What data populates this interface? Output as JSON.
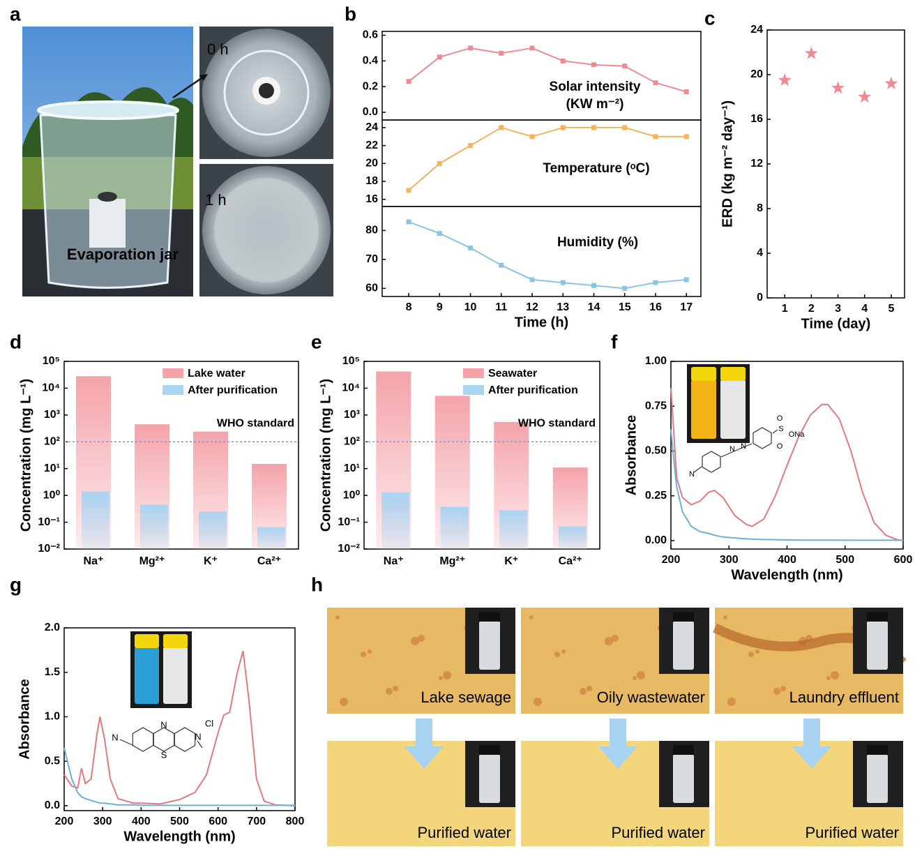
{
  "panel_labels": [
    "a",
    "b",
    "c",
    "d",
    "e",
    "f",
    "g",
    "h"
  ],
  "photo_labels": {
    "before": "0 h",
    "after": "1 h",
    "jar": "Evaporation jar"
  },
  "micrographs": {
    "samples": [
      "Lake sewage",
      "Oily wastewater",
      "Laundry effluent"
    ],
    "purified": [
      "Purified water",
      "Purified water",
      "Purified water"
    ]
  },
  "chart_data": [
    {
      "type": "line",
      "annotation": [
        "Solar intensity",
        "(KW m⁻²)"
      ],
      "marker": "square",
      "x": [
        8,
        9,
        10,
        11,
        12,
        13,
        14,
        15,
        16,
        17
      ],
      "xlim": [
        7.14,
        17.47
      ],
      "series": [
        {
          "color": "#f08a92",
          "values": [
            0.24,
            0.43,
            0.5,
            0.46,
            0.5,
            0.4,
            0.37,
            0.36,
            0.23,
            0.16
          ]
        }
      ],
      "ylim": [
        -0.06,
        0.63
      ],
      "yticks": [
        {
          "value": 0,
          "label": "0.0"
        },
        0.2,
        0.4,
        0.6
      ]
    },
    {
      "type": "line",
      "annotation": [
        "Temperature (ᵒC)"
      ],
      "marker": "square",
      "x": [
        8,
        9,
        10,
        11,
        12,
        13,
        14,
        15,
        16,
        17
      ],
      "xlim": [
        7.14,
        17.47
      ],
      "series": [
        {
          "color": "#f5b35a",
          "values": [
            17,
            20,
            22,
            24,
            23,
            24,
            24,
            24,
            23,
            23
          ]
        }
      ],
      "ylim": [
        15.2,
        24.85
      ],
      "yticks": [
        16,
        18,
        20,
        22,
        24
      ]
    },
    {
      "type": "line",
      "annotation": [
        "Humidity (%)"
      ],
      "marker": "square",
      "xlabel": "Time (h)",
      "x": [
        8,
        9,
        10,
        11,
        12,
        13,
        14,
        15,
        16,
        17
      ],
      "xlim": [
        7.14,
        17.47
      ],
      "xticks": [
        8,
        9,
        10,
        11,
        12,
        13,
        14,
        15,
        16,
        17
      ],
      "series": [
        {
          "color": "#8cc3e3",
          "values": [
            83,
            79,
            74,
            68,
            63,
            62,
            61,
            60,
            62,
            63
          ]
        }
      ],
      "ylim": [
        57.2,
        88.3
      ],
      "yticks": [
        60,
        70,
        80
      ]
    },
    {
      "type": "scatter",
      "marker": "star",
      "xlabel": "Time (day)",
      "ylabel": "ERD (kg m⁻² day⁻¹)",
      "x": [
        1,
        2,
        3,
        4,
        5
      ],
      "xlim": [
        0.34,
        5.5
      ],
      "xticks": [
        1,
        2,
        3,
        4,
        5
      ],
      "series": [
        {
          "color": "#f08a92",
          "values": [
            19.5,
            21.9,
            18.8,
            18.0,
            19.2
          ]
        }
      ],
      "ylim": [
        0,
        24
      ],
      "yticks": [
        0,
        4,
        8,
        12,
        16,
        20,
        24
      ]
    },
    {
      "type": "bar",
      "log_y": true,
      "ylabel": "Concentration (mg L⁻¹)",
      "legend": "upper right",
      "categories": [
        "Na⁺",
        "Mg²⁺",
        "K⁺",
        "Ca²⁺"
      ],
      "series": [
        {
          "name": "Lake water",
          "color": "#f4a3aa",
          "values": [
            28000,
            450,
            240,
            15
          ]
        },
        {
          "name": "After purification",
          "color": "#a9d4f2",
          "values": [
            1.4,
            0.45,
            0.25,
            0.065
          ]
        }
      ],
      "reference": {
        "value": 100,
        "label": "WHO standard"
      },
      "ylim": [
        0.01,
        100000
      ],
      "yticks": [
        {
          "value": 0.01,
          "label": "10⁻²"
        },
        {
          "value": 0.1,
          "label": "10⁻¹"
        },
        {
          "value": 1,
          "label": "10⁰"
        },
        {
          "value": 10,
          "label": "10¹"
        },
        {
          "value": 100,
          "label": "10²"
        },
        {
          "value": 1000,
          "label": "10³"
        },
        {
          "value": 10000,
          "label": "10⁴"
        },
        {
          "value": 100000,
          "label": "10⁵"
        }
      ]
    },
    {
      "type": "bar",
      "log_y": true,
      "ylabel": "Concentration (mg L⁻¹)",
      "legend": "upper right",
      "categories": [
        "Na⁺",
        "Mg²⁺",
        "K⁺",
        "Ca²⁺"
      ],
      "series": [
        {
          "name": "Seawater",
          "color": "#f4a3aa",
          "values": [
            42000,
            5200,
            550,
            11
          ]
        },
        {
          "name": "After purification",
          "color": "#a9d4f2",
          "values": [
            1.3,
            0.38,
            0.28,
            0.07
          ]
        }
      ],
      "reference": {
        "value": 100,
        "label": "WHO standard"
      },
      "ylim": [
        0.01,
        100000
      ],
      "yticks": [
        {
          "value": 0.01,
          "label": "10⁻²"
        },
        {
          "value": 0.1,
          "label": "10⁻¹"
        },
        {
          "value": 1,
          "label": "10⁰"
        },
        {
          "value": 10,
          "label": "10¹"
        },
        {
          "value": 100,
          "label": "10²"
        },
        {
          "value": 1000,
          "label": "10³"
        },
        {
          "value": 10000,
          "label": "10⁴"
        },
        {
          "value": 100000,
          "label": "10⁵"
        }
      ]
    },
    {
      "type": "line",
      "xlabel": "Wavelength (nm)",
      "ylabel": "Absorbance",
      "inset_labels": [
        "N",
        "N",
        "N",
        "S",
        "ONa",
        "O",
        "O"
      ],
      "x": [
        200,
        205,
        210,
        220,
        235,
        250,
        265,
        275,
        290,
        310,
        330,
        340,
        360,
        380,
        400,
        420,
        440,
        460,
        470,
        490,
        510,
        530,
        550,
        570,
        590,
        600
      ],
      "xlim": [
        200,
        600
      ],
      "xticks": [
        200,
        300,
        400,
        500,
        600
      ],
      "series": [
        {
          "color": "#e8777f",
          "values": [
            0.85,
            0.6,
            0.35,
            0.24,
            0.2,
            0.22,
            0.27,
            0.28,
            0.24,
            0.14,
            0.09,
            0.08,
            0.12,
            0.25,
            0.42,
            0.58,
            0.7,
            0.76,
            0.76,
            0.68,
            0.5,
            0.27,
            0.1,
            0.03,
            0.005,
            0
          ]
        },
        {
          "color": "#6ab0de",
          "values": [
            0.62,
            0.45,
            0.3,
            0.16,
            0.08,
            0.05,
            0.04,
            0.03,
            0.02,
            0.015,
            0.01,
            0.008,
            0.006,
            0.005,
            0.004,
            0.003,
            0.003,
            0.003,
            0.003,
            0.003,
            0.002,
            0.002,
            0.002,
            0.002,
            0.002,
            0.002
          ]
        }
      ],
      "ylim": [
        -0.047,
        1.0
      ],
      "yticks": [
        {
          "value": 0,
          "label": "0.00"
        },
        {
          "value": 0.25,
          "label": "0.25"
        },
        {
          "value": 0.5,
          "label": "0.50"
        },
        {
          "value": 0.75,
          "label": "0.75"
        },
        {
          "value": 1,
          "label": "1.00"
        }
      ]
    },
    {
      "type": "line",
      "xlabel": "Wavelength (nm)",
      "ylabel": "Absorbance",
      "inset_labels": [
        "N",
        "N",
        "S",
        "N",
        "Cl"
      ],
      "x": [
        200,
        220,
        235,
        245,
        255,
        270,
        285,
        293,
        305,
        320,
        340,
        380,
        400,
        450,
        500,
        540,
        570,
        600,
        615,
        630,
        650,
        665,
        680,
        700,
        720,
        750,
        800
      ],
      "xlim": [
        200,
        800
      ],
      "xticks": [
        200,
        300,
        400,
        500,
        600,
        700,
        800
      ],
      "series": [
        {
          "color": "#e8777f",
          "values": [
            0.35,
            0.22,
            0.2,
            0.42,
            0.25,
            0.3,
            0.8,
            1.0,
            0.75,
            0.3,
            0.08,
            0.03,
            0.03,
            0.02,
            0.07,
            0.15,
            0.35,
            0.82,
            1.02,
            1.05,
            1.5,
            1.74,
            1.2,
            0.3,
            0.05,
            0.01,
            0
          ]
        },
        {
          "color": "#6ab0de",
          "values": [
            0.65,
            0.3,
            0.15,
            0.1,
            0.08,
            0.06,
            0.04,
            0.03,
            0.03,
            0.02,
            0.01,
            0.01,
            0.005,
            0.005,
            0.005,
            0.005,
            0.005,
            0.005,
            0.005,
            0.005,
            0.005,
            0.005,
            0.005,
            0.005,
            0.005,
            0.005,
            0.005
          ]
        }
      ],
      "ylim": [
        -0.055,
        2.0
      ],
      "yticks": [
        {
          "value": 0,
          "label": "0.0"
        },
        {
          "value": 0.5,
          "label": "0.5"
        },
        {
          "value": 1,
          "label": "1.0"
        },
        {
          "value": 1.5,
          "label": "1.5"
        },
        {
          "value": 2,
          "label": "2.0"
        }
      ]
    }
  ]
}
